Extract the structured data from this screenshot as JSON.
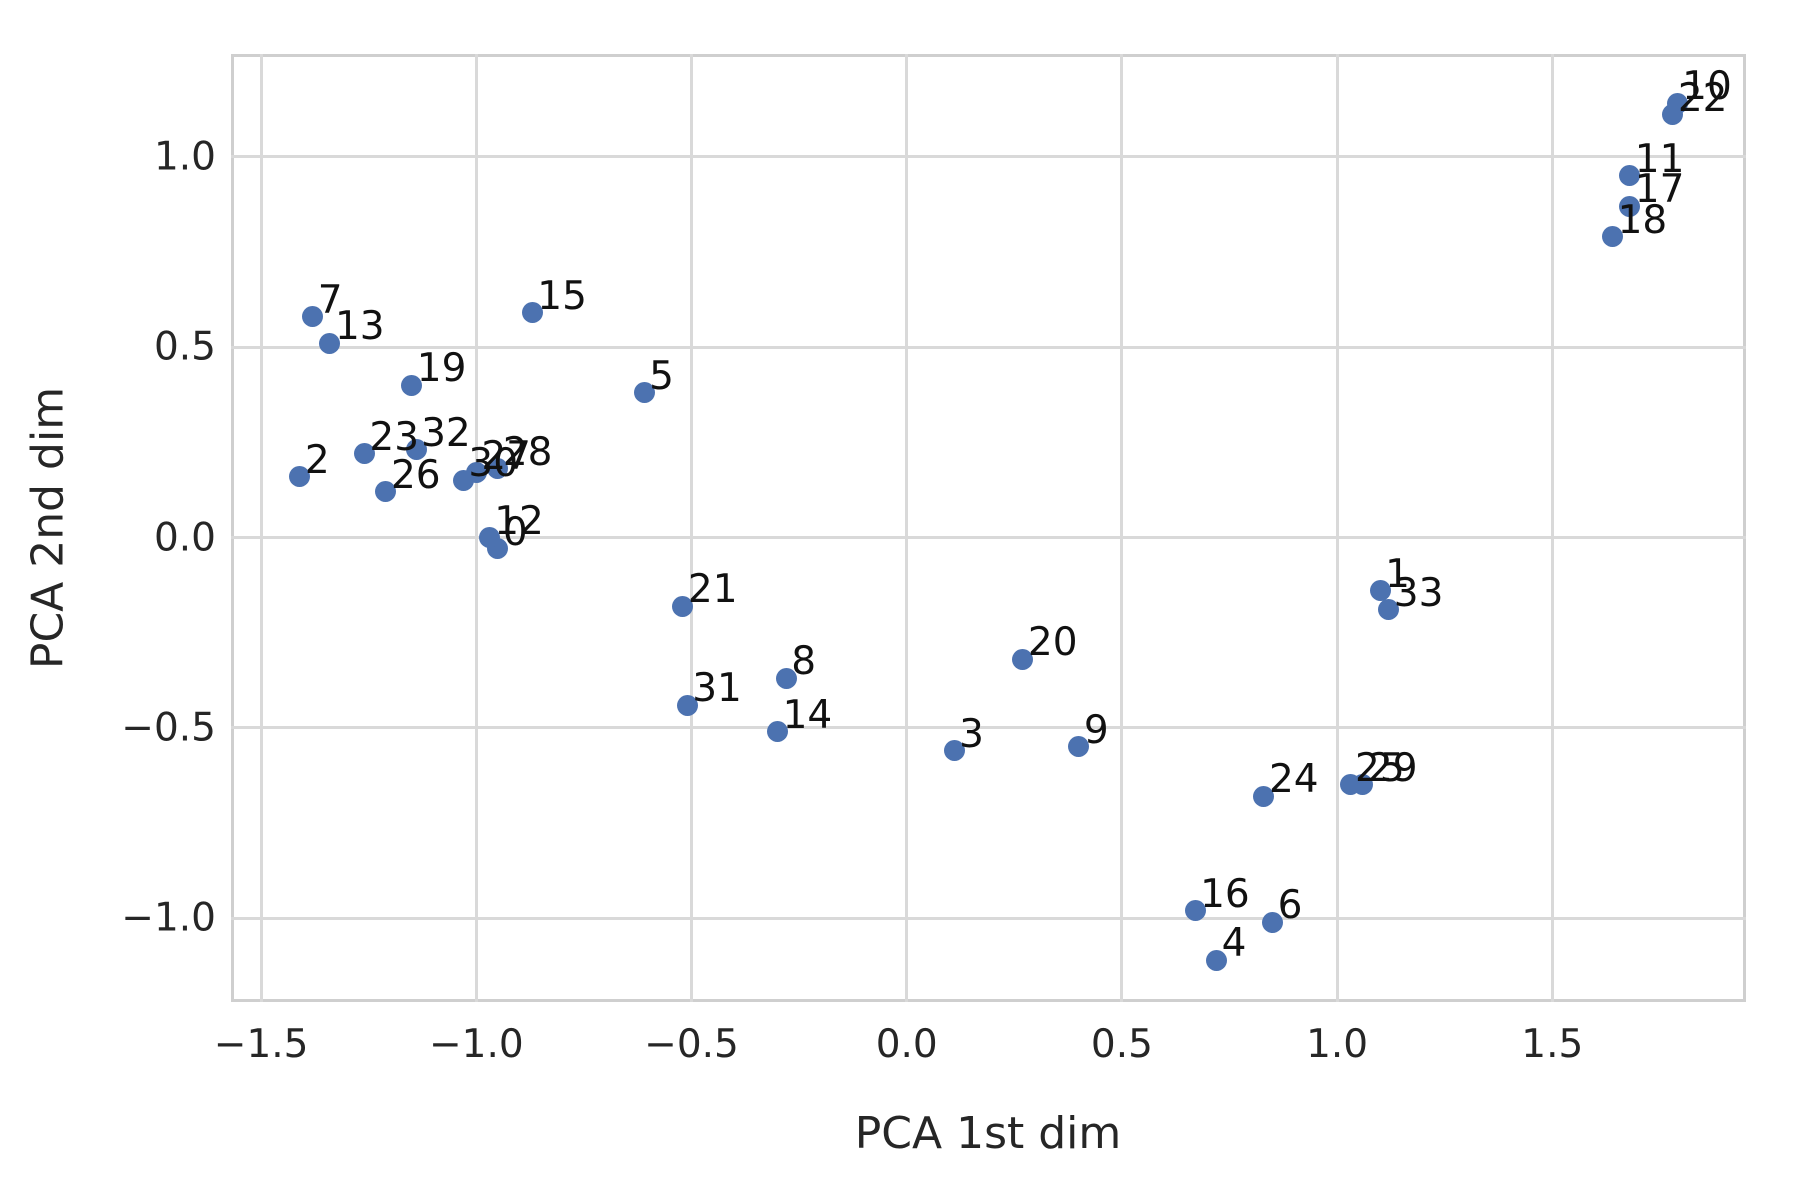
{
  "chart_data": {
    "type": "scatter",
    "title": "",
    "xlabel": "PCA 1st dim",
    "ylabel": "PCA 2nd dim",
    "xlim": [
      -1.57,
      1.95
    ],
    "ylim": [
      -1.22,
      1.27
    ],
    "xticks": [
      -1.5,
      -1.0,
      -0.5,
      0.0,
      0.5,
      1.0,
      1.5
    ],
    "xtick_labels": [
      "−1.5",
      "−1.0",
      "−0.5",
      "0.0",
      "0.5",
      "1.0",
      "1.5"
    ],
    "yticks": [
      1.0,
      0.5,
      0.0,
      -0.5,
      -1.0
    ],
    "ytick_labels": [
      "1.0",
      "0.5",
      "0.0",
      "−0.5",
      "−1.0"
    ],
    "grid": true,
    "legend": "none",
    "marker_color": "#4c72b0",
    "points": [
      {
        "label": "0",
        "x": -0.95,
        "y": -0.03
      },
      {
        "label": "1",
        "x": 1.1,
        "y": -0.14
      },
      {
        "label": "2",
        "x": -1.41,
        "y": 0.16
      },
      {
        "label": "3",
        "x": 0.11,
        "y": -0.56
      },
      {
        "label": "4",
        "x": 0.72,
        "y": -1.11
      },
      {
        "label": "5",
        "x": -0.61,
        "y": 0.38
      },
      {
        "label": "6",
        "x": 0.85,
        "y": -1.01
      },
      {
        "label": "7",
        "x": -1.38,
        "y": 0.58
      },
      {
        "label": "8",
        "x": -0.28,
        "y": -0.37
      },
      {
        "label": "9",
        "x": 0.4,
        "y": -0.55
      },
      {
        "label": "10",
        "x": 1.79,
        "y": 1.14
      },
      {
        "label": "11",
        "x": 1.68,
        "y": 0.95
      },
      {
        "label": "12",
        "x": -0.97,
        "y": 0.0
      },
      {
        "label": "13",
        "x": -1.34,
        "y": 0.51
      },
      {
        "label": "14",
        "x": -0.3,
        "y": -0.51
      },
      {
        "label": "15",
        "x": -0.87,
        "y": 0.59
      },
      {
        "label": "16",
        "x": 0.67,
        "y": -0.98
      },
      {
        "label": "17",
        "x": 1.68,
        "y": 0.87
      },
      {
        "label": "18",
        "x": 1.64,
        "y": 0.79
      },
      {
        "label": "19",
        "x": -1.15,
        "y": 0.4
      },
      {
        "label": "20",
        "x": 0.27,
        "y": -0.32
      },
      {
        "label": "21",
        "x": -0.52,
        "y": -0.18
      },
      {
        "label": "22",
        "x": 1.78,
        "y": 1.11
      },
      {
        "label": "23",
        "x": -1.26,
        "y": 0.22
      },
      {
        "label": "24",
        "x": 0.83,
        "y": -0.68
      },
      {
        "label": "25",
        "x": 1.03,
        "y": -0.65
      },
      {
        "label": "26",
        "x": -1.21,
        "y": 0.12
      },
      {
        "label": "27",
        "x": -1.0,
        "y": 0.17
      },
      {
        "label": "28",
        "x": -0.95,
        "y": 0.18
      },
      {
        "label": "29",
        "x": 1.06,
        "y": -0.65
      },
      {
        "label": "30",
        "x": -1.03,
        "y": 0.15
      },
      {
        "label": "31",
        "x": -0.51,
        "y": -0.44
      },
      {
        "label": "32",
        "x": -1.14,
        "y": 0.23
      },
      {
        "label": "33",
        "x": 1.12,
        "y": -0.19
      }
    ]
  }
}
